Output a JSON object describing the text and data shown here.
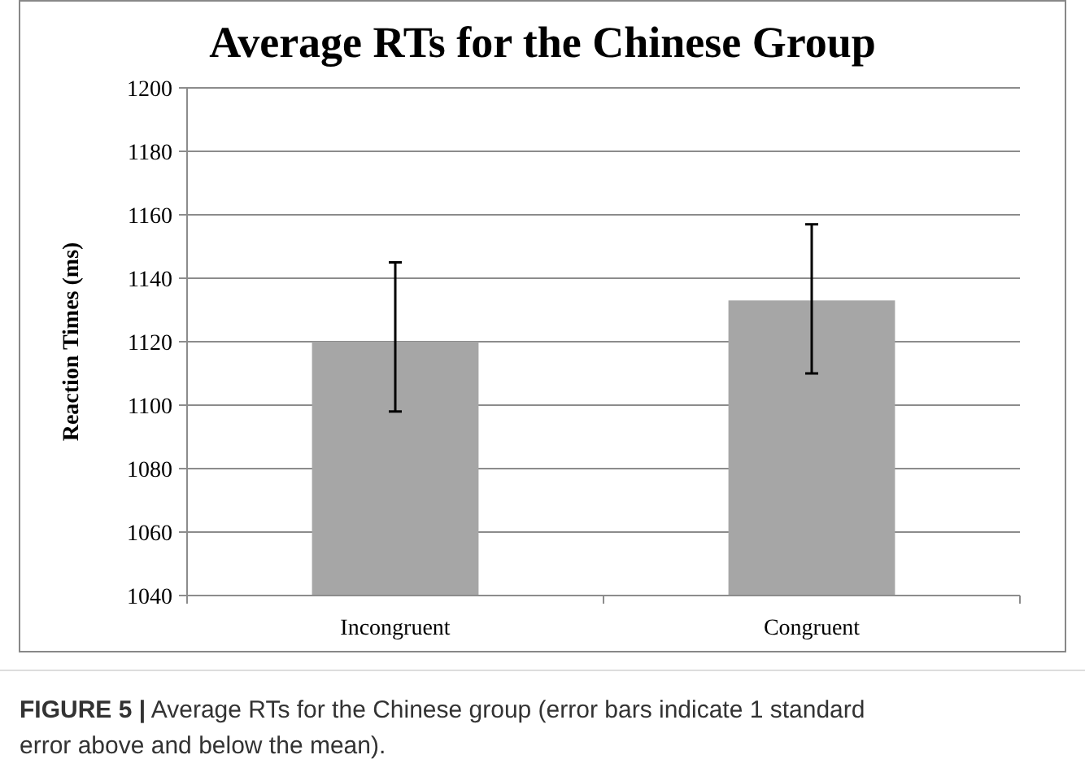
{
  "chart_data": {
    "type": "bar",
    "title": "Average RTs for the Chinese Group",
    "ylabel": "Reaction Times (ms)",
    "categories": [
      "Incongruent",
      "Congruent"
    ],
    "values": [
      1120,
      1133
    ],
    "errors": [
      [
        1098,
        1145
      ],
      [
        1110,
        1157
      ]
    ],
    "color": "#a6a6a6",
    "ylim": [
      1040,
      1200
    ],
    "yticks": [
      1040,
      1060,
      1080,
      1100,
      1120,
      1140,
      1160,
      1180,
      1200
    ],
    "grid": "y",
    "annotations": [
      "FIGURE 5 | Average RTs for the Chinese group (error bars indicate 1 standard error above and below the mean)."
    ]
  }
}
